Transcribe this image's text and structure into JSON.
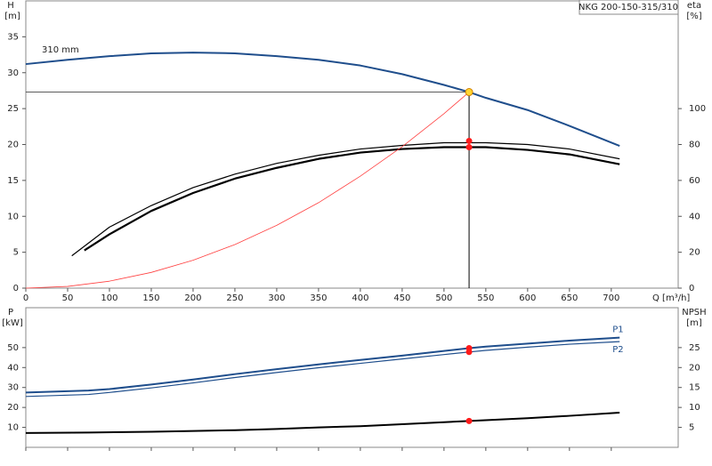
{
  "chart_data": [
    {
      "type": "line",
      "title": "NKG 200-150-315/310",
      "ylabel": "H",
      "yunit": "[m]",
      "y2label": "eta",
      "y2unit": "[%]",
      "xlabel": "Q [m³/h]",
      "xlim": [
        0,
        780
      ],
      "xticks": [
        0,
        50,
        100,
        150,
        200,
        250,
        300,
        350,
        400,
        450,
        500,
        550,
        600,
        650,
        700
      ],
      "ylim": [
        0,
        40
      ],
      "yticks": [
        0,
        5,
        10,
        15,
        20,
        25,
        30,
        35
      ],
      "y2lim": [
        0,
        160
      ],
      "y2ticks": [
        0,
        20,
        40,
        60,
        80,
        100
      ],
      "curve_label": "310 mm",
      "series": [
        {
          "color": "#1f4e8c",
          "width": 2,
          "x": [
            0,
            50,
            100,
            150,
            200,
            250,
            300,
            350,
            400,
            450,
            500,
            530,
            550,
            600,
            650,
            710
          ],
          "values": [
            31.2,
            31.8,
            32.3,
            32.7,
            32.8,
            32.7,
            32.3,
            31.8,
            31,
            29.8,
            28.3,
            27.3,
            26.5,
            24.8,
            22.6,
            19.8
          ]
        },
        {
          "color": "#000000",
          "width": 1.2,
          "axis": "y2",
          "x": [
            55,
            100,
            150,
            200,
            250,
            300,
            350,
            400,
            450,
            500,
            550,
            600,
            650,
            710
          ],
          "values": [
            18,
            34,
            46,
            56,
            63.5,
            69.5,
            74,
            77.5,
            79.5,
            81,
            81,
            80,
            77.5,
            72
          ]
        },
        {
          "color": "#000000",
          "width": 2.2,
          "axis": "y2",
          "x": [
            70,
            100,
            150,
            200,
            250,
            300,
            350,
            400,
            450,
            500,
            550,
            600,
            650,
            710
          ],
          "values": [
            21,
            30,
            43,
            53,
            61,
            67,
            72,
            75.5,
            77.5,
            78.5,
            78.5,
            77,
            74.5,
            69
          ]
        },
        {
          "color": "#ff4040",
          "width": 0.8,
          "x": [
            0,
            50,
            100,
            150,
            200,
            250,
            300,
            350,
            400,
            450,
            500,
            530
          ],
          "values": [
            0,
            0.24,
            0.97,
            2.19,
            3.89,
            6.07,
            8.75,
            11.9,
            15.6,
            19.7,
            24.3,
            27.3
          ]
        }
      ],
      "operating_point": {
        "x": 530,
        "y": 27.3
      },
      "markers": [
        {
          "x": 530,
          "y": 82,
          "axis": "y2"
        },
        {
          "x": 530,
          "y": 78.5,
          "axis": "y2"
        }
      ]
    },
    {
      "type": "line",
      "ylabel": "P",
      "yunit": "[kW]",
      "y2label": "NPSH",
      "y2unit": "[m]",
      "xlim": [
        0,
        780
      ],
      "xticks": [
        0,
        50,
        100,
        150,
        200,
        250,
        300,
        350,
        400,
        450,
        500,
        550,
        600,
        650,
        700
      ],
      "ylim": [
        0,
        70
      ],
      "yticks": [
        10,
        20,
        30,
        40,
        50
      ],
      "y2lim": [
        0,
        35
      ],
      "y2ticks": [
        5,
        10,
        15,
        20,
        25
      ],
      "series": [
        {
          "name": "P1",
          "color": "#1f4e8c",
          "width": 2,
          "x": [
            0,
            75,
            100,
            150,
            200,
            250,
            300,
            350,
            400,
            450,
            500,
            530,
            550,
            600,
            650,
            710
          ],
          "values": [
            27.5,
            28.5,
            29.2,
            31.5,
            34,
            36.7,
            39.2,
            41.6,
            43.8,
            46,
            48.3,
            49.7,
            50.5,
            52,
            53.5,
            55
          ]
        },
        {
          "name": "P2",
          "color": "#1f4e8c",
          "width": 1.2,
          "x": [
            0,
            75,
            100,
            150,
            200,
            250,
            300,
            350,
            400,
            450,
            500,
            530,
            550,
            600,
            650,
            710
          ],
          "values": [
            25.5,
            26.5,
            27.5,
            29.8,
            32.3,
            35,
            37.5,
            39.9,
            42.1,
            44.3,
            46.5,
            47.8,
            48.6,
            50.2,
            51.7,
            53
          ]
        },
        {
          "color": "#000000",
          "width": 2,
          "axis": "y2",
          "x": [
            0,
            75,
            150,
            200,
            250,
            300,
            350,
            400,
            450,
            500,
            530,
            600,
            650,
            710
          ],
          "values": [
            3.6,
            3.7,
            3.9,
            4.1,
            4.3,
            4.6,
            5,
            5.3,
            5.8,
            6.3,
            6.6,
            7.3,
            7.9,
            8.7
          ]
        }
      ],
      "markers": [
        {
          "x": 530,
          "y": 49.7
        },
        {
          "x": 530,
          "y": 47.8
        },
        {
          "x": 530,
          "y": 6.6,
          "axis": "y2"
        }
      ]
    }
  ]
}
